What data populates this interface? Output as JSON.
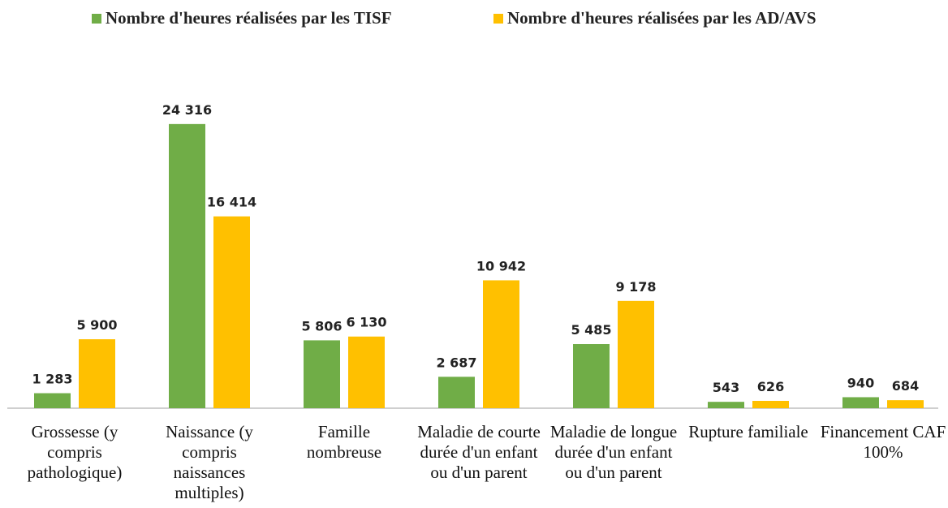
{
  "chart_data": {
    "type": "bar",
    "categories": [
      "Grossesse (y compris pathologique)",
      "Naissance (y compris naissances multiples)",
      "Famille nombreuse",
      "Maladie de courte durée d'un enfant ou d'un parent",
      "Maladie de longue durée d'un enfant ou d'un parent",
      "Rupture familiale",
      "Financement CAF 100%"
    ],
    "series": [
      {
        "name": "Nombre d'heures réalisées par les TISF",
        "color": "#70ad47",
        "values": [
          1283,
          24316,
          5806,
          2687,
          5485,
          543,
          940
        ],
        "value_labels": [
          "1 283",
          "24 316",
          "5 806",
          "2 687",
          "5 485",
          "543",
          "940"
        ]
      },
      {
        "name": "Nombre d'heures réalisées par les AD/AVS",
        "color": "#ffc000",
        "values": [
          5900,
          16414,
          6130,
          10942,
          9178,
          626,
          684
        ],
        "value_labels": [
          "5 900",
          "16 414",
          "6 130",
          "10 942",
          "9 178",
          "626",
          "684"
        ]
      }
    ],
    "ylim": [
      0,
      25000
    ],
    "legend": "top"
  }
}
